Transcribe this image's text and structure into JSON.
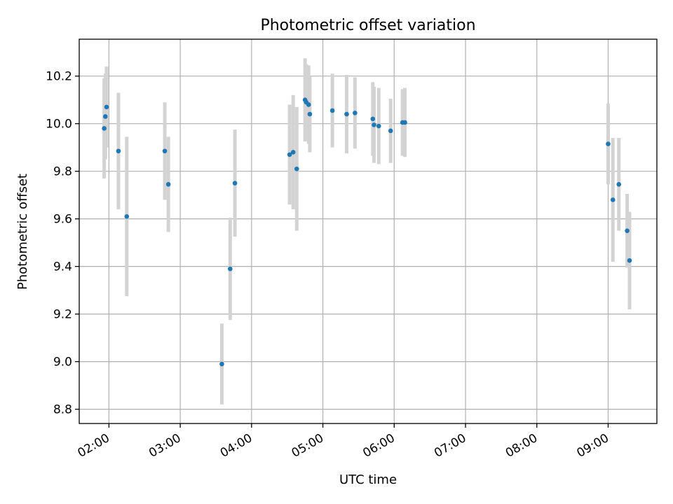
{
  "chart_data": {
    "type": "scatter",
    "title": "Photometric offset variation",
    "xlabel": "UTC time",
    "ylabel": "Photometric offset",
    "grid": true,
    "x_ticks": [
      "02:00",
      "03:00",
      "04:00",
      "05:00",
      "06:00",
      "07:00",
      "08:00",
      "09:00"
    ],
    "y_ticks": [
      8.8,
      9.0,
      9.2,
      9.4,
      9.6,
      9.8,
      10.0,
      10.2
    ],
    "xlim": [
      "01:35",
      "09:41"
    ],
    "ylim": [
      8.74,
      10.355
    ],
    "marker_color": "#1f77b4",
    "errorbar_color": "#d3d3d3",
    "series": [
      {
        "points": [
          {
            "x": "01:56",
            "y": 9.98,
            "err": 0.21
          },
          {
            "x": "01:57",
            "y": 10.03,
            "err": 0.18
          },
          {
            "x": "01:58",
            "y": 10.07,
            "err": 0.17
          },
          {
            "x": "02:08",
            "y": 9.885,
            "err": 0.245
          },
          {
            "x": "02:15",
            "y": 9.61,
            "err": 0.335
          },
          {
            "x": "02:47",
            "y": 9.885,
            "err": 0.205
          },
          {
            "x": "02:50",
            "y": 9.745,
            "err": 0.2
          },
          {
            "x": "03:35",
            "y": 8.99,
            "err": 0.17
          },
          {
            "x": "03:42",
            "y": 9.39,
            "err": 0.215
          },
          {
            "x": "03:46",
            "y": 9.75,
            "err": 0.225
          },
          {
            "x": "04:32",
            "y": 9.87,
            "err": 0.21
          },
          {
            "x": "04:35",
            "y": 9.88,
            "err": 0.24
          },
          {
            "x": "04:38",
            "y": 9.81,
            "err": 0.26
          },
          {
            "x": "04:45",
            "y": 10.1,
            "err": 0.175
          },
          {
            "x": "04:46",
            "y": 10.09,
            "err": 0.16
          },
          {
            "x": "04:48",
            "y": 10.08,
            "err": 0.165
          },
          {
            "x": "04:49",
            "y": 10.04,
            "err": 0.16
          },
          {
            "x": "05:08",
            "y": 10.055,
            "err": 0.155
          },
          {
            "x": "05:20",
            "y": 10.04,
            "err": 0.165
          },
          {
            "x": "05:27",
            "y": 10.045,
            "err": 0.15
          },
          {
            "x": "05:42",
            "y": 10.02,
            "err": 0.155
          },
          {
            "x": "05:43",
            "y": 9.995,
            "err": 0.16
          },
          {
            "x": "05:47",
            "y": 9.99,
            "err": 0.16
          },
          {
            "x": "05:57",
            "y": 9.97,
            "err": 0.135
          },
          {
            "x": "06:07",
            "y": 10.005,
            "err": 0.14
          },
          {
            "x": "06:09",
            "y": 10.005,
            "err": 0.145
          },
          {
            "x": "09:00",
            "y": 9.915,
            "err": 0.17
          },
          {
            "x": "09:04",
            "y": 9.68,
            "err": 0.26
          },
          {
            "x": "09:09",
            "y": 9.745,
            "err": 0.195
          },
          {
            "x": "09:16",
            "y": 9.55,
            "err": 0.155
          },
          {
            "x": "09:18",
            "y": 9.425,
            "err": 0.205
          }
        ]
      }
    ]
  }
}
